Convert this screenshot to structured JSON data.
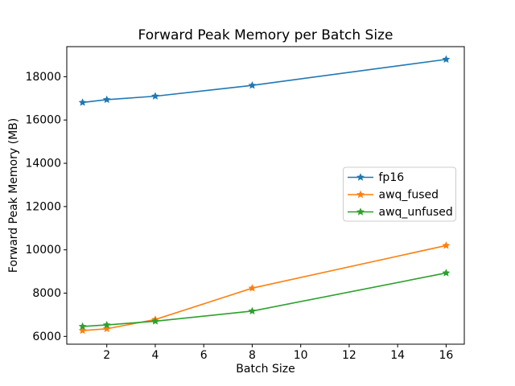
{
  "chart_data": {
    "type": "line",
    "title": "Forward Peak Memory per Batch Size",
    "xlabel": "Batch Size",
    "ylabel": "Forward Peak Memory (MB)",
    "x": [
      1,
      2,
      4,
      8,
      16
    ],
    "series": [
      {
        "name": "fp16",
        "color": "#1f77b4",
        "marker": "star",
        "values": [
          16810,
          16940,
          17100,
          17600,
          18800
        ]
      },
      {
        "name": "awq_fused",
        "color": "#ff7f0e",
        "marker": "star",
        "values": [
          6270,
          6350,
          6780,
          8230,
          10200
        ]
      },
      {
        "name": "awq_unfused",
        "color": "#2ca02c",
        "marker": "star",
        "values": [
          6460,
          6530,
          6700,
          7170,
          8930
        ]
      }
    ],
    "xlim": [
      0.35,
      16.75
    ],
    "ylim": [
      5640,
      19390
    ],
    "xticks": [
      2,
      4,
      6,
      8,
      10,
      12,
      14,
      16
    ],
    "yticks": [
      6000,
      8000,
      10000,
      12000,
      14000,
      16000,
      18000
    ],
    "grid": false,
    "legend": {
      "position": "center right",
      "entries": [
        "fp16",
        "awq_fused",
        "awq_unfused"
      ]
    },
    "axis_color": "#000000",
    "background_color": "#ffffff"
  }
}
